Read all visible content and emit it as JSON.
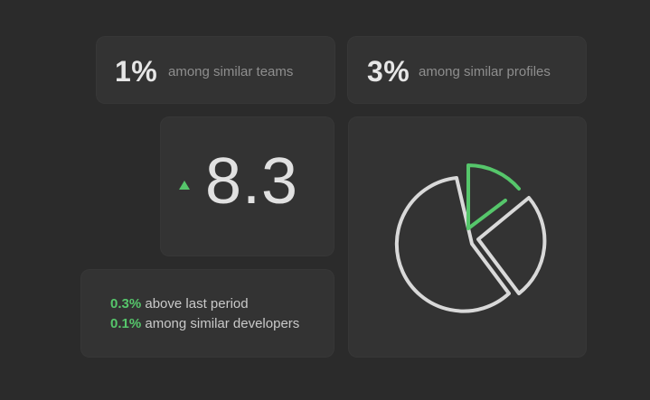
{
  "stats": {
    "teams": {
      "value": "1%",
      "label": "among similar teams"
    },
    "profiles": {
      "value": "3%",
      "label": "among similar profiles"
    }
  },
  "score": {
    "value": "8.3",
    "trend_icon": "triangle-up-icon",
    "trend_color": "#56c66b"
  },
  "details": [
    {
      "highlight": "0.3%",
      "text": " above last period"
    },
    {
      "highlight": "0.1%",
      "text": " among similar developers"
    }
  ],
  "colors": {
    "background": "#2b2b2b",
    "card": "#333333",
    "accent": "#56c66b",
    "outline": "#d9d9d9",
    "muted_text": "#8e8e8e"
  },
  "chart_icon": "pie-chart-exploded-icon"
}
